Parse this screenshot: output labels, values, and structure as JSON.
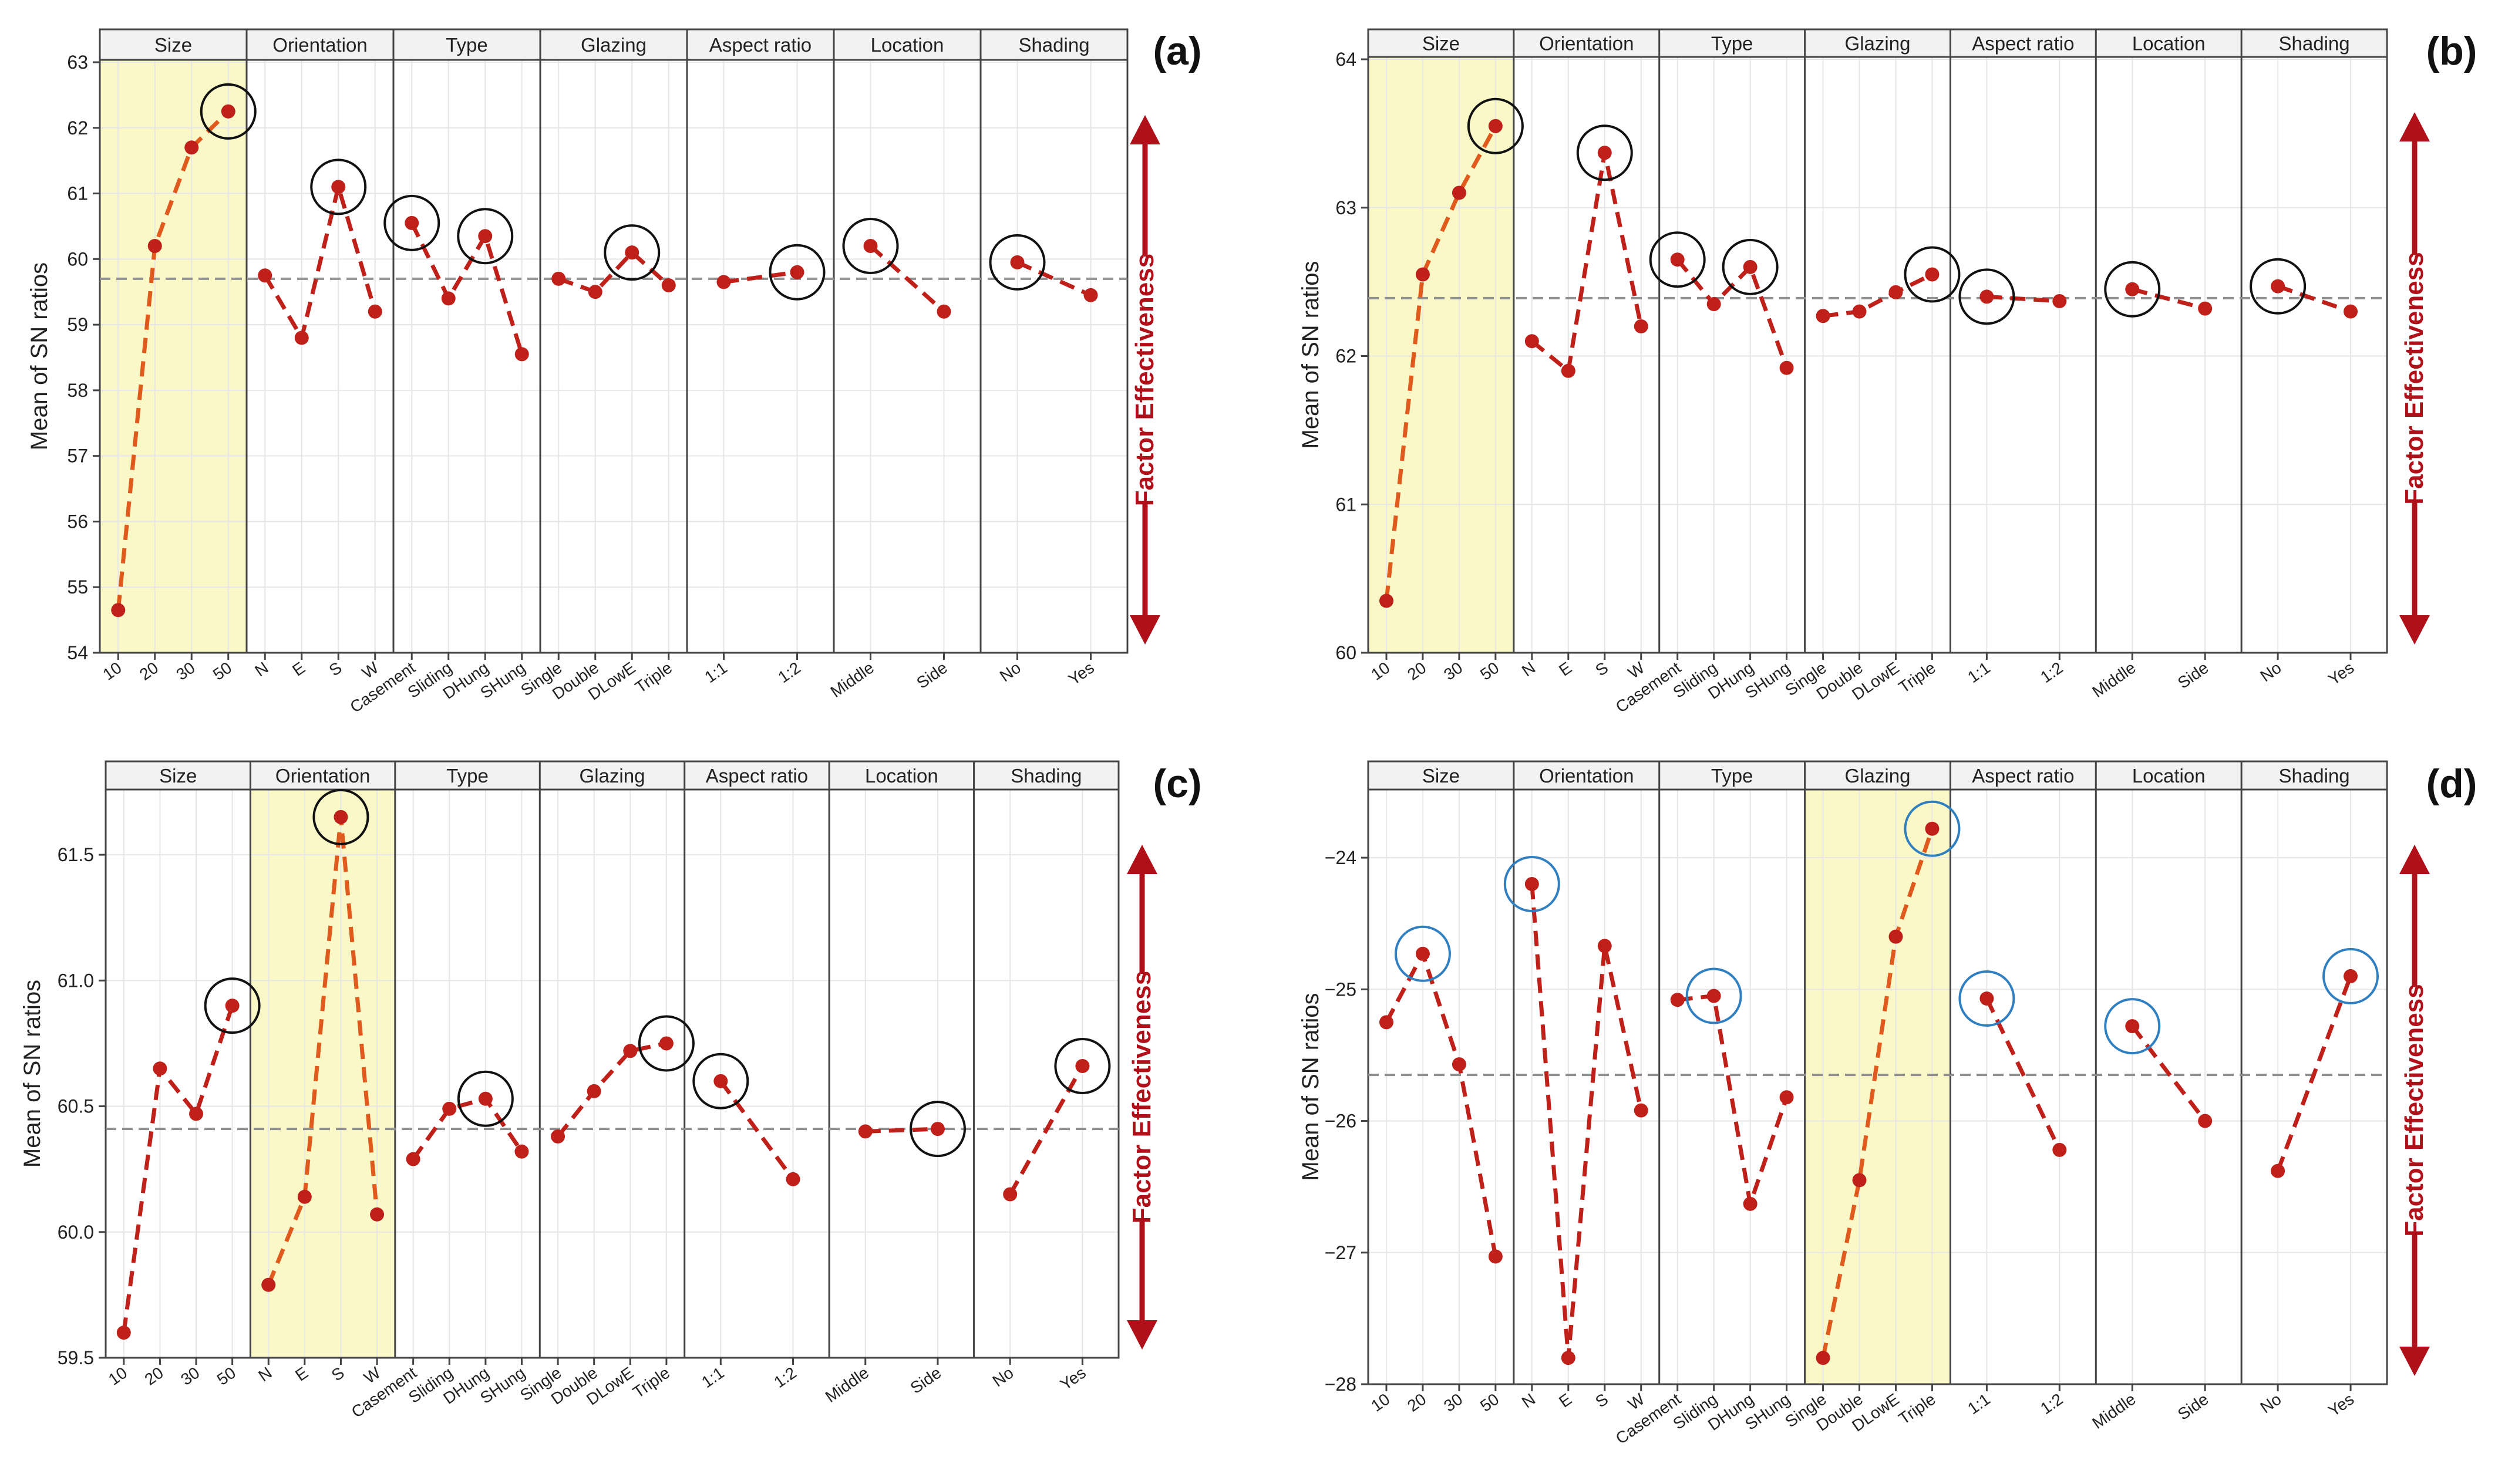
{
  "figure": {
    "ylabel": "Mean of SN ratios",
    "side_label": "Factor Effectiveness",
    "factors": [
      "Size",
      "Orientation",
      "Type",
      "Glazing",
      "Aspect ratio",
      "Location",
      "Shading"
    ],
    "levels": [
      [
        "10",
        "20",
        "30",
        "50"
      ],
      [
        "N",
        "E",
        "S",
        "W"
      ],
      [
        "Casement",
        "Sliding",
        "DHung",
        "SHung"
      ],
      [
        "Single",
        "Double",
        "DLowE",
        "Triple"
      ],
      [
        "1:1",
        "1:2"
      ],
      [
        "Middle",
        "Side"
      ],
      [
        "No",
        "Yes"
      ]
    ],
    "colors": {
      "line": "#c0201a",
      "marker": "#c0201a",
      "highlight_fill": "#fbf8c8",
      "circle_black": "#111111",
      "circle_blue": "#2f7fc1",
      "mean_line": "#8f8f8f",
      "header_fill": "#f2f2f2",
      "grid": "#e6e6e6",
      "axis": "#444444",
      "arrow": "#b0101a"
    }
  },
  "chart_data": [
    {
      "type": "line",
      "panel_label": "(a)",
      "title": "",
      "xlabel": "",
      "ylabel": "Mean of SN ratios",
      "ylim": [
        54,
        63
      ],
      "yticks": [
        "54",
        "55",
        "56",
        "57",
        "58",
        "59",
        "60",
        "61",
        "62",
        "63"
      ],
      "overall_mean": 59.7,
      "highlight_factor": "Size",
      "circle_color": "black",
      "series": [
        {
          "factor": "Size",
          "values": [
            54.65,
            60.2,
            61.7,
            62.25
          ],
          "circled": [
            3
          ]
        },
        {
          "factor": "Orientation",
          "values": [
            59.75,
            58.8,
            61.1,
            59.2
          ],
          "circled": [
            2
          ]
        },
        {
          "factor": "Type",
          "values": [
            60.55,
            59.4,
            60.35,
            58.55
          ],
          "circled": [
            0,
            2
          ]
        },
        {
          "factor": "Glazing",
          "values": [
            59.7,
            59.5,
            60.1,
            59.6
          ],
          "circled": [
            2
          ]
        },
        {
          "factor": "Aspect ratio",
          "values": [
            59.65,
            59.8
          ],
          "circled": [
            1
          ]
        },
        {
          "factor": "Location",
          "values": [
            60.2,
            59.2
          ],
          "circled": [
            0
          ]
        },
        {
          "factor": "Shading",
          "values": [
            59.95,
            59.45
          ],
          "circled": [
            0
          ]
        }
      ]
    },
    {
      "type": "line",
      "panel_label": "(b)",
      "title": "",
      "xlabel": "",
      "ylabel": "Mean of SN ratios",
      "ylim": [
        60,
        64
      ],
      "yticks": [
        "60",
        "61",
        "62",
        "63",
        "64"
      ],
      "overall_mean": 62.39,
      "highlight_factor": "Size",
      "circle_color": "black",
      "series": [
        {
          "factor": "Size",
          "values": [
            60.35,
            62.55,
            63.1,
            63.55
          ],
          "circled": [
            3
          ]
        },
        {
          "factor": "Orientation",
          "values": [
            62.1,
            61.9,
            63.37,
            62.2
          ],
          "circled": [
            2
          ]
        },
        {
          "factor": "Type",
          "values": [
            62.65,
            62.35,
            62.6,
            61.92
          ],
          "circled": [
            0,
            2
          ]
        },
        {
          "factor": "Glazing",
          "values": [
            62.27,
            62.3,
            62.43,
            62.55
          ],
          "circled": [
            3
          ]
        },
        {
          "factor": "Aspect ratio",
          "values": [
            62.4,
            62.37
          ],
          "circled": [
            0
          ]
        },
        {
          "factor": "Location",
          "values": [
            62.45,
            62.32
          ],
          "circled": [
            0
          ]
        },
        {
          "factor": "Shading",
          "values": [
            62.47,
            62.3
          ],
          "circled": [
            0
          ]
        }
      ]
    },
    {
      "type": "line",
      "panel_label": "(c)",
      "title": "",
      "xlabel": "",
      "ylabel": "Mean of SN ratios",
      "ylim": [
        59.5,
        61.75
      ],
      "yticks": [
        "59.5",
        "60.0",
        "60.5",
        "61.0",
        "61.5"
      ],
      "overall_mean": 60.41,
      "highlight_factor": "Orientation",
      "circle_color": "black",
      "series": [
        {
          "factor": "Size",
          "values": [
            59.6,
            60.65,
            60.47,
            60.9
          ],
          "circled": [
            3
          ]
        },
        {
          "factor": "Orientation",
          "values": [
            59.79,
            60.14,
            61.65,
            60.07
          ],
          "circled": [
            2
          ]
        },
        {
          "factor": "Type",
          "values": [
            60.29,
            60.49,
            60.53,
            60.32
          ],
          "circled": [
            2
          ]
        },
        {
          "factor": "Glazing",
          "values": [
            60.38,
            60.56,
            60.72,
            60.75
          ],
          "circled": [
            3
          ]
        },
        {
          "factor": "Aspect ratio",
          "values": [
            60.6,
            60.21
          ],
          "circled": [
            0
          ]
        },
        {
          "factor": "Location",
          "values": [
            60.4,
            60.41
          ],
          "circled": [
            1
          ]
        },
        {
          "factor": "Shading",
          "values": [
            60.15,
            60.66
          ],
          "circled": [
            1
          ]
        }
      ]
    },
    {
      "type": "line",
      "panel_label": "(d)",
      "title": "",
      "xlabel": "",
      "ylabel": "Mean of SN ratios",
      "ylim": [
        -28,
        -23.5
      ],
      "yticks": [
        "−28",
        "−27",
        "−26",
        "−25",
        "−24"
      ],
      "overall_mean": -25.65,
      "highlight_factor": "Glazing",
      "circle_color": "blue",
      "series": [
        {
          "factor": "Size",
          "values": [
            -25.25,
            -24.73,
            -25.57,
            -27.03
          ],
          "circled": [
            1
          ]
        },
        {
          "factor": "Orientation",
          "values": [
            -24.2,
            -27.8,
            -24.67,
            -25.92
          ],
          "circled": [
            0
          ]
        },
        {
          "factor": "Type",
          "values": [
            -25.08,
            -25.05,
            -26.63,
            -25.82
          ],
          "circled": [
            1
          ]
        },
        {
          "factor": "Glazing",
          "values": [
            -27.8,
            -26.45,
            -24.6,
            -23.78
          ],
          "circled": [
            3
          ]
        },
        {
          "factor": "Aspect ratio",
          "values": [
            -25.07,
            -26.22
          ],
          "circled": [
            0
          ]
        },
        {
          "factor": "Location",
          "values": [
            -25.28,
            -26.0
          ],
          "circled": [
            0
          ]
        },
        {
          "factor": "Shading",
          "values": [
            -26.38,
            -24.9
          ],
          "circled": [
            1
          ]
        }
      ]
    }
  ]
}
